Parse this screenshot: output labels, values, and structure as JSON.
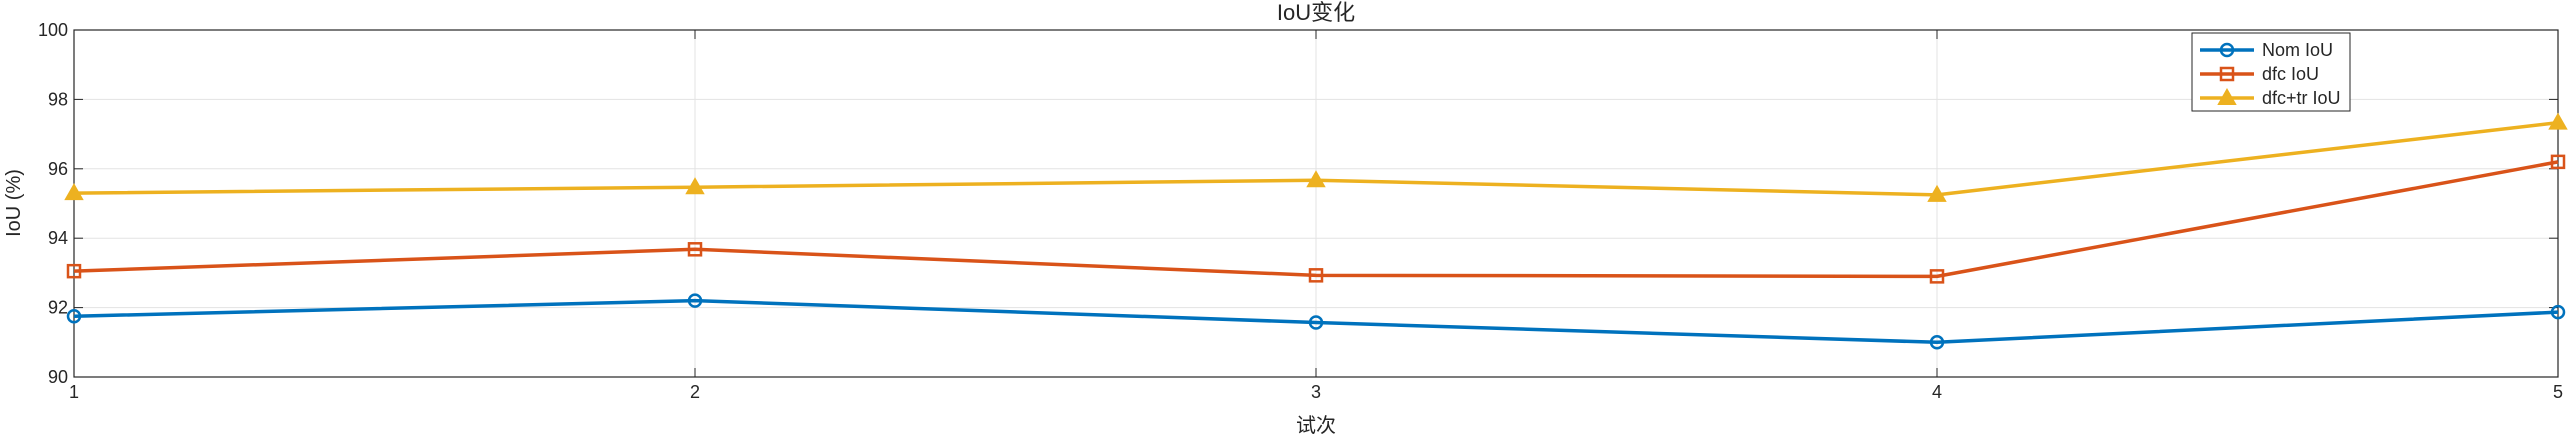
{
  "chart_data": {
    "type": "line",
    "title": "IoU变化",
    "xlabel": "试次",
    "ylabel": "IoU (%)",
    "x": [
      1,
      2,
      3,
      4,
      5
    ],
    "xlim": [
      1,
      5
    ],
    "ylim": [
      90,
      100
    ],
    "xticks": [
      1,
      2,
      3,
      4,
      5
    ],
    "yticks": [
      90,
      92,
      94,
      96,
      98,
      100
    ],
    "grid": true,
    "legend_position": "top-right",
    "series": [
      {
        "name": "Nom IoU",
        "values": [
          91.75,
          92.2,
          91.57,
          91.0,
          91.87
        ],
        "color": "#0072BD",
        "marker": "circle"
      },
      {
        "name": "dfc IoU",
        "values": [
          93.05,
          93.68,
          92.93,
          92.9,
          96.2
        ],
        "color": "#D95319",
        "marker": "square"
      },
      {
        "name": "dfc+tr IoU",
        "values": [
          95.3,
          95.47,
          95.67,
          95.25,
          97.33
        ],
        "color": "#EDB120",
        "marker": "triangle"
      }
    ]
  }
}
